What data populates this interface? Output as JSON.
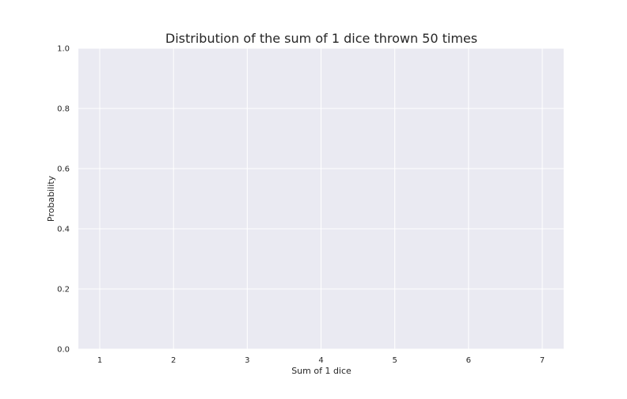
{
  "chart_data": {
    "type": "bar",
    "title": "Distribution of the sum of 1 dice thrown 50 times",
    "xlabel": "Sum of 1 dice",
    "ylabel": "Probability",
    "x_ticks": [
      1,
      2,
      3,
      4,
      5,
      6,
      7
    ],
    "y_ticks": [
      0.0,
      0.2,
      0.4,
      0.6,
      0.8,
      1.0
    ],
    "y_tick_labels": [
      "0.0",
      "0.2",
      "0.4",
      "0.6",
      "0.8",
      "1.0"
    ],
    "xlim": [
      0.71,
      7.29
    ],
    "ylim": [
      0.0,
      1.0
    ],
    "categories": [],
    "values": [],
    "grid": true,
    "colors": {
      "plot_background": "#eaeaf2",
      "grid": "#ffffff",
      "text": "#262626"
    }
  }
}
